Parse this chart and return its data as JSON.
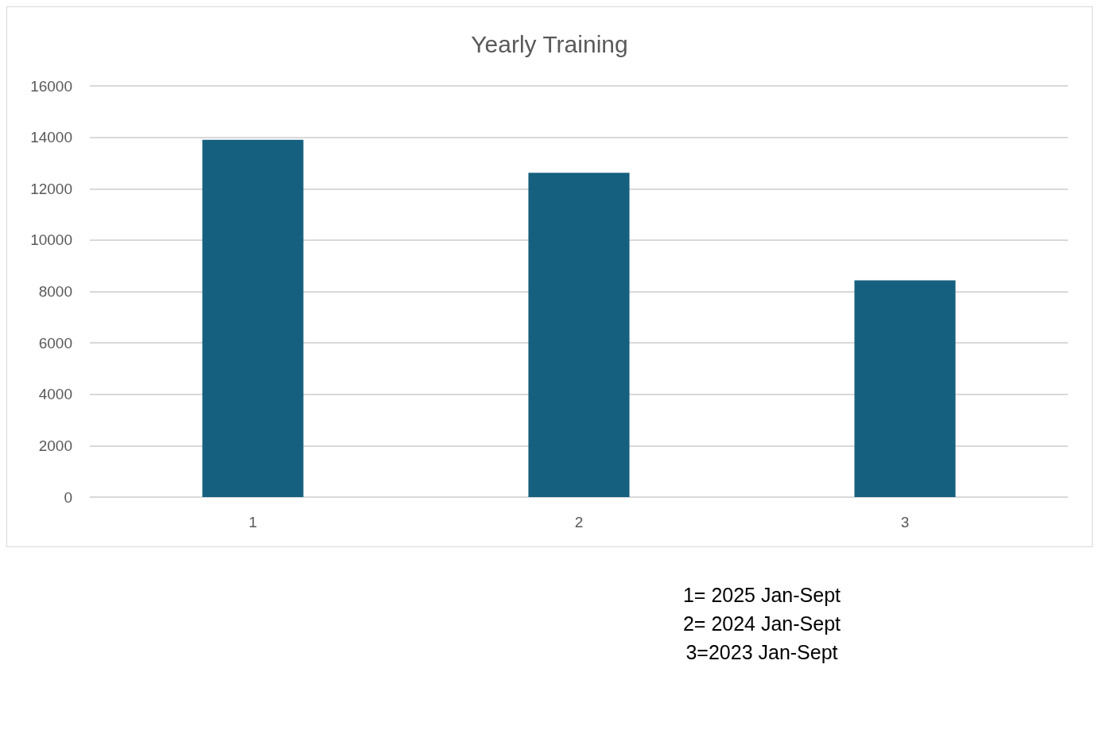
{
  "chart_data": {
    "type": "bar",
    "title": "Yearly Training",
    "categories": [
      "1",
      "2",
      "3"
    ],
    "values": [
      13900,
      12620,
      8430
    ],
    "color": "#16607f",
    "ylim": [
      0,
      16000
    ],
    "yticks": [
      0,
      2000,
      4000,
      6000,
      8000,
      10000,
      12000,
      14000,
      16000
    ],
    "grid": "y",
    "annotations": [
      "1= 2025 Jan-Sept",
      "2= 2024 Jan-Sept",
      "3=2023 Jan-Sept"
    ]
  }
}
